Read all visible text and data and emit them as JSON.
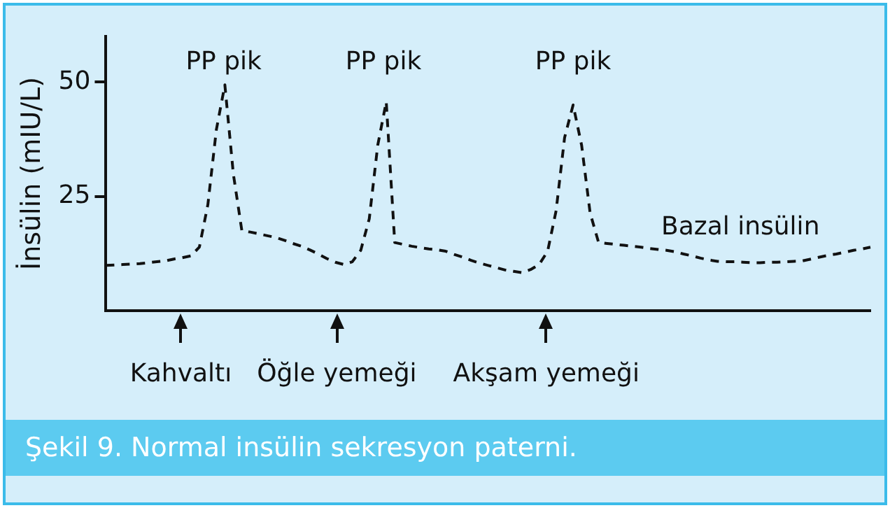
{
  "chart_data": {
    "type": "line",
    "title": "Şekil 9. Normal insülin sekresyon paterni.",
    "ylabel": "İnsülin (mIU/L)",
    "categories": [
      null,
      null,
      null,
      null,
      null,
      null,
      null,
      null,
      null,
      null,
      null,
      null,
      null,
      null,
      null,
      null,
      null,
      null,
      null,
      null,
      null,
      null,
      null,
      null,
      null,
      null,
      null,
      null,
      null,
      null,
      null,
      null,
      null,
      null,
      null,
      null,
      null,
      null,
      null,
      null,
      null,
      null,
      null,
      null,
      null,
      null,
      null,
      null,
      null,
      null,
      null,
      null,
      null,
      null,
      null,
      null,
      null,
      null,
      null,
      null,
      null,
      null,
      null,
      null,
      null,
      null,
      null,
      null,
      null,
      null,
      null,
      null,
      null,
      null,
      null,
      null,
      null,
      null,
      null,
      null,
      null,
      null,
      null,
      null,
      null,
      null,
      null,
      null,
      null,
      null,
      null
    ],
    "values": [
      9.9,
      10.0,
      10.1,
      10.2,
      10.3,
      10.5,
      10.7,
      10.9,
      11.3,
      11.6,
      12.0,
      13.9,
      23.2,
      39.6,
      49.4,
      29.9,
      17.5,
      17.2,
      16.8,
      16.4,
      16.0,
      15.4,
      14.7,
      14.1,
      13.3,
      12.4,
      11.4,
      10.6,
      10.1,
      10.7,
      13.2,
      20.1,
      36.2,
      45.7,
      14.9,
      14.5,
      14.1,
      13.8,
      13.5,
      13.3,
      13.0,
      12.3,
      11.7,
      11.0,
      10.4,
      9.9,
      9.4,
      8.9,
      8.6,
      8.3,
      9.0,
      10.1,
      13.0,
      21.9,
      37.9,
      45.0,
      36.2,
      21.4,
      14.9,
      14.7,
      14.5,
      14.3,
      14.1,
      13.9,
      13.6,
      13.4,
      13.2,
      12.9,
      12.4,
      12.0,
      11.5,
      11.1,
      10.8,
      10.7,
      10.7,
      10.6,
      10.5,
      10.5,
      10.6,
      10.6,
      10.7,
      10.8,
      10.9,
      11.3,
      11.7,
      12.1,
      12.4,
      12.8,
      13.2,
      13.5,
      13.9
    ],
    "color": "#111111",
    "line_style": "dashed",
    "marker": "none",
    "tick_labels": "y",
    "ylim": [
      0,
      60
    ],
    "yticks": [
      25,
      50
    ],
    "annotations": [
      "PP pik",
      "PP pik",
      "PP pik",
      "Bazal insülin",
      "Kahvaltı",
      "Öğle yemeği",
      "Akşam yemeği"
    ]
  }
}
